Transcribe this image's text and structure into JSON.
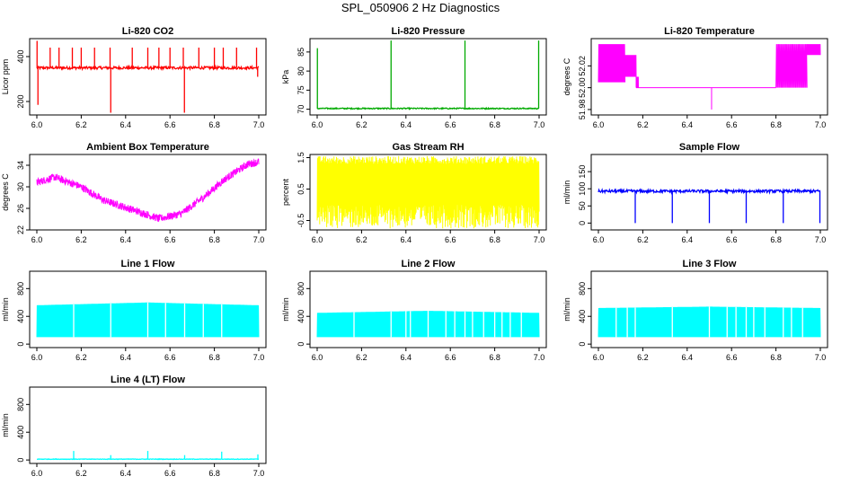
{
  "figure": {
    "title": "SPL_050906  2 Hz Diagnostics"
  },
  "chart_data": [
    {
      "id": "co2",
      "type": "line",
      "title": "Li-820 CO2",
      "ylabel": "Licor ppm",
      "color": "#ff0000",
      "xlim": [
        6.0,
        7.0
      ],
      "ylim": [
        140,
        480
      ],
      "xticks": [
        "6.0",
        "6.2",
        "6.4",
        "6.6",
        "6.8",
        "7.0"
      ],
      "yticks": [
        {
          "v": 200,
          "label": "200"
        },
        {
          "v": 400,
          "label": "400"
        }
      ],
      "series": [
        {
          "name": "CO2",
          "baseline": 350,
          "noise": 6,
          "spikes": [
            [
              6.001,
              470
            ],
            [
              6.005,
              185
            ],
            [
              6.06,
              440
            ],
            [
              6.1,
              440
            ],
            [
              6.16,
              440
            ],
            [
              6.2,
              440
            ],
            [
              6.26,
              440
            ],
            [
              6.33,
              440
            ],
            [
              6.333,
              150
            ],
            [
              6.43,
              440
            ],
            [
              6.5,
              440
            ],
            [
              6.55,
              440
            ],
            [
              6.6,
              440
            ],
            [
              6.66,
              440
            ],
            [
              6.665,
              150
            ],
            [
              6.73,
              440
            ],
            [
              6.8,
              440
            ],
            [
              6.84,
              440
            ],
            [
              6.9,
              440
            ],
            [
              6.99,
              440
            ],
            [
              6.995,
              310
            ]
          ]
        }
      ]
    },
    {
      "id": "pressure",
      "type": "line",
      "title": "Li-820 Pressure",
      "ylabel": "kPa",
      "color": "#00aa00",
      "xlim": [
        6.0,
        7.0
      ],
      "ylim": [
        68.5,
        88.5
      ],
      "xticks": [
        "6.0",
        "6.2",
        "6.4",
        "6.6",
        "6.8",
        "7.0"
      ],
      "yticks": [
        {
          "v": 70,
          "label": "70"
        },
        {
          "v": 75,
          "label": "75"
        },
        {
          "v": 80,
          "label": "80"
        },
        {
          "v": 85,
          "label": "85"
        }
      ],
      "series": [
        {
          "name": "Pressure",
          "baseline": 70.2,
          "noise": 0.15,
          "spikes": [
            [
              6.001,
              86
            ],
            [
              6.333,
              88
            ],
            [
              6.666,
              88
            ],
            [
              6.998,
              88
            ]
          ]
        }
      ]
    },
    {
      "id": "licor-temp",
      "type": "line",
      "title": "Li-820 Temperature",
      "ylabel": "degrees C",
      "color": "#ff00ff",
      "xlim": [
        6.0,
        7.0
      ],
      "ylim": [
        51.975,
        52.045
      ],
      "xticks": [
        "6.0",
        "6.2",
        "6.4",
        "6.6",
        "6.8",
        "7.0"
      ],
      "yticks": [
        {
          "v": 51.98,
          "label": "51.98"
        },
        {
          "v": 52.0,
          "label": "52.00"
        },
        {
          "v": 52.02,
          "label": "52.02"
        }
      ],
      "series": [
        {
          "name": "Temperature",
          "segments": [
            [
              6.0,
              6.12,
              52.005,
              52.04
            ],
            [
              6.12,
              6.17,
              52.01,
              52.03
            ],
            [
              6.17,
              6.18,
              52.0,
              52.01
            ],
            [
              6.8,
              6.94,
              52.0,
              52.04
            ],
            [
              6.94,
              7.0,
              52.03,
              52.04
            ]
          ],
          "flat": [
            [
              6.17,
              6.8,
              52.0
            ]
          ],
          "spikes": [
            [
              6.51,
              51.98
            ]
          ]
        }
      ]
    },
    {
      "id": "box-temp",
      "type": "line",
      "title": "Ambient Box Temperature",
      "ylabel": "degrees C",
      "color": "#ff00ff",
      "xlim": [
        6.0,
        7.0
      ],
      "ylim": [
        22,
        36
      ],
      "xticks": [
        "6.0",
        "6.2",
        "6.4",
        "6.6",
        "6.8",
        "7.0"
      ],
      "yticks": [
        {
          "v": 22,
          "label": "22"
        },
        {
          "v": 26,
          "label": "26"
        },
        {
          "v": 30,
          "label": "30"
        },
        {
          "v": 34,
          "label": "34"
        }
      ],
      "series": [
        {
          "name": "Box Temp",
          "noise": 0.7,
          "curve": [
            [
              6.0,
              30.8
            ],
            [
              6.08,
              31.8
            ],
            [
              6.2,
              30
            ],
            [
              6.3,
              27.5
            ],
            [
              6.45,
              25.5
            ],
            [
              6.55,
              24.1
            ],
            [
              6.65,
              25.0
            ],
            [
              6.75,
              28
            ],
            [
              6.85,
              31.5
            ],
            [
              6.95,
              34.2
            ],
            [
              7.0,
              34.6
            ]
          ]
        }
      ]
    },
    {
      "id": "rh",
      "type": "line",
      "title": "Gas Stream RH",
      "ylabel": "percent",
      "color": "#ffff00",
      "xlim": [
        6.0,
        7.0
      ],
      "ylim": [
        -0.8,
        1.6
      ],
      "xticks": [
        "6.0",
        "6.2",
        "6.4",
        "6.6",
        "6.8",
        "7.0"
      ],
      "yticks": [
        {
          "v": -0.5,
          "label": "-0.5"
        },
        {
          "v": 0.5,
          "label": "0.5"
        },
        {
          "v": 1.5,
          "label": "1.5"
        }
      ],
      "series": [
        {
          "name": "RH",
          "band": [
            -0.75,
            1.55
          ],
          "core": [
            0.0,
            1.3
          ]
        }
      ]
    },
    {
      "id": "sample-flow",
      "type": "line",
      "title": "Sample Flow",
      "ylabel": "ml/min",
      "color": "#0000ff",
      "xlim": [
        6.0,
        7.0
      ],
      "ylim": [
        -20,
        200
      ],
      "xticks": [
        "6.0",
        "6.2",
        "6.4",
        "6.6",
        "6.8",
        "7.0"
      ],
      "yticks": [
        {
          "v": 0,
          "label": "0"
        },
        {
          "v": 50,
          "label": "50"
        },
        {
          "v": 100,
          "label": "100"
        },
        {
          "v": 150,
          "label": "150"
        }
      ],
      "series": [
        {
          "name": "Flow",
          "baseline": 93,
          "noise": 4,
          "spikes": [
            [
              6.166,
              0
            ],
            [
              6.333,
              0
            ],
            [
              6.5,
              0
            ],
            [
              6.666,
              0
            ],
            [
              6.833,
              0
            ],
            [
              6.998,
              0
            ]
          ]
        }
      ]
    },
    {
      "id": "line1",
      "type": "line",
      "title": "Line 1 Flow",
      "ylabel": "ml/min",
      "color": "#00ffff",
      "xlim": [
        6.0,
        7.0
      ],
      "ylim": [
        -50,
        1050
      ],
      "xticks": [
        "6.0",
        "6.2",
        "6.4",
        "6.6",
        "6.8",
        "7.0"
      ],
      "yticks": [
        {
          "v": 0,
          "label": "0"
        },
        {
          "v": 400,
          "label": "400"
        },
        {
          "v": 800,
          "label": "800"
        }
      ],
      "series": [
        {
          "name": "Line 1",
          "band": [
            100,
            560
          ],
          "top_curve": [
            [
              6.0,
              560
            ],
            [
              6.5,
              600
            ],
            [
              7.0,
              560
            ]
          ],
          "gaps": [
            6.166,
            6.333,
            6.5,
            6.58,
            6.666,
            6.75,
            6.833
          ]
        }
      ]
    },
    {
      "id": "line2",
      "type": "line",
      "title": "Line 2 Flow",
      "ylabel": "ml/min",
      "color": "#00ffff",
      "xlim": [
        6.0,
        7.0
      ],
      "ylim": [
        -50,
        1050
      ],
      "xticks": [
        "6.0",
        "6.2",
        "6.4",
        "6.6",
        "6.8",
        "7.0"
      ],
      "yticks": [
        {
          "v": 0,
          "label": "0"
        },
        {
          "v": 400,
          "label": "400"
        },
        {
          "v": 800,
          "label": "800"
        }
      ],
      "series": [
        {
          "name": "Line 2",
          "band": [
            100,
            450
          ],
          "top_curve": [
            [
              6.0,
              450
            ],
            [
              6.5,
              480
            ],
            [
              7.0,
              450
            ]
          ],
          "gaps": [
            6.166,
            6.333,
            6.4,
            6.42,
            6.5,
            6.58,
            6.62,
            6.666,
            6.7,
            6.75,
            6.8,
            6.833,
            6.87,
            6.92
          ]
        }
      ]
    },
    {
      "id": "line3",
      "type": "line",
      "title": "Line 3 Flow",
      "ylabel": "ml/min",
      "color": "#00ffff",
      "xlim": [
        6.0,
        7.0
      ],
      "ylim": [
        -50,
        1050
      ],
      "xticks": [
        "6.0",
        "6.2",
        "6.4",
        "6.6",
        "6.8",
        "7.0"
      ],
      "yticks": [
        {
          "v": 0,
          "label": "0"
        },
        {
          "v": 400,
          "label": "400"
        },
        {
          "v": 800,
          "label": "800"
        }
      ],
      "series": [
        {
          "name": "Line 3",
          "band": [
            100,
            520
          ],
          "top_curve": [
            [
              6.0,
              520
            ],
            [
              6.5,
              540
            ],
            [
              7.0,
              520
            ]
          ],
          "gaps": [
            6.08,
            6.13,
            6.166,
            6.333,
            6.5,
            6.58,
            6.62,
            6.666,
            6.7,
            6.75,
            6.833,
            6.87,
            6.92
          ]
        }
      ]
    },
    {
      "id": "line4",
      "type": "line",
      "title": "Line 4 (LT) Flow",
      "ylabel": "ml/min",
      "color": "#00ffff",
      "xlim": [
        6.0,
        7.0
      ],
      "ylim": [
        -50,
        1050
      ],
      "xticks": [
        "6.0",
        "6.2",
        "6.4",
        "6.6",
        "6.8",
        "7.0"
      ],
      "yticks": [
        {
          "v": 0,
          "label": "0"
        },
        {
          "v": 400,
          "label": "400"
        },
        {
          "v": 800,
          "label": "800"
        }
      ],
      "series": [
        {
          "name": "Line 4",
          "baseline": 12,
          "noise": 4,
          "spikes": [
            [
              6.166,
              130
            ],
            [
              6.333,
              70
            ],
            [
              6.5,
              130
            ],
            [
              6.666,
              70
            ],
            [
              6.833,
              120
            ],
            [
              6.996,
              80
            ]
          ]
        }
      ]
    }
  ]
}
